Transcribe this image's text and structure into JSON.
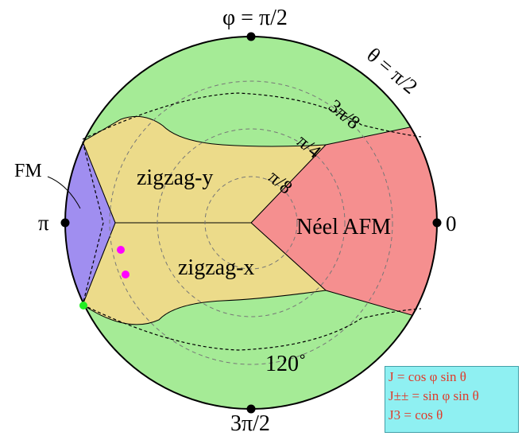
{
  "phases": {
    "fm": "FM",
    "zigzag_y": "zigzag-y",
    "zigzag_x": "zigzag-x",
    "neel_afm": "Néel AFM"
  },
  "phi_labels": {
    "top": "φ = π/2",
    "left": "π",
    "right": "0",
    "bottom": "3π/2"
  },
  "theta_labels": {
    "outer": "θ = π/2",
    "three_pi_8": "3π/8",
    "pi_4": "π/4",
    "pi_8": "π/8"
  },
  "angle_label": "120˚",
  "legend": {
    "line1": "J = cos φ sin θ",
    "line2": "J±± = sin φ sin θ",
    "line3": "J3 = cos θ"
  },
  "colors": {
    "green_phase": "#a5eb96",
    "yellow_phase": "#ecdb8a",
    "red_phase": "#f58f8f",
    "purple_phase": "#a08ef0",
    "magenta_points": "#ff00ff",
    "green_point": "#22ee22",
    "legend_bg": "#8ff0f2",
    "legend_text": "#e03a2a"
  }
}
